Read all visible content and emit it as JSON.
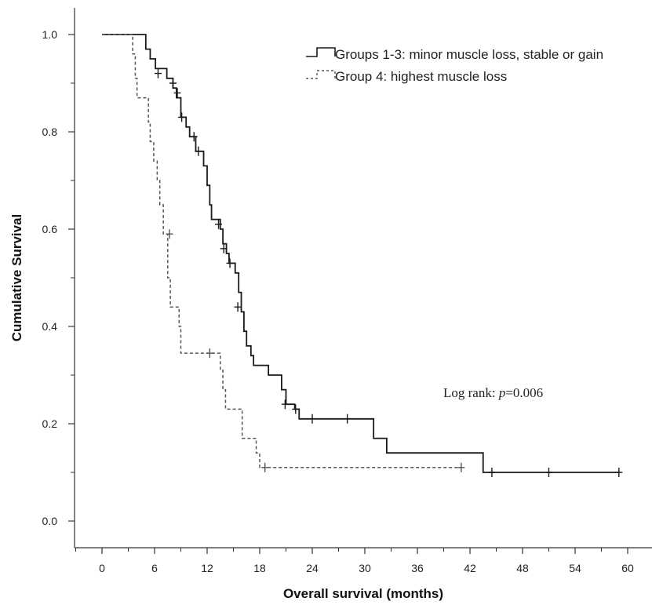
{
  "chart_data": {
    "type": "line",
    "title": "",
    "xlabel": "Overall survival (months)",
    "ylabel": "Cumulative Survival",
    "xlim": [
      0,
      62
    ],
    "ylim": [
      0,
      1.0
    ],
    "x_ticks": [
      0,
      6,
      12,
      18,
      24,
      30,
      36,
      42,
      48,
      54,
      60
    ],
    "x_minor_step": 3,
    "y_ticks": [
      0.0,
      0.2,
      0.4,
      0.6,
      0.8,
      1.0
    ],
    "y_tick_labels": [
      "0.0",
      "0.2",
      "0.4",
      "0.6",
      "0.8",
      "1.0"
    ],
    "y_minor_step": 0.1,
    "grid": false,
    "legend_position": "top-right",
    "series": [
      {
        "name": "Groups 1-3: minor muscle loss, stable or gain",
        "line_style": "solid",
        "color": "#1a1a1a",
        "steps": [
          [
            0,
            1.0
          ],
          [
            2.5,
            1.0
          ],
          [
            5.0,
            0.97
          ],
          [
            5.5,
            0.95
          ],
          [
            6.1,
            0.93
          ],
          [
            7.4,
            0.91
          ],
          [
            8.1,
            0.89
          ],
          [
            8.5,
            0.87
          ],
          [
            9.0,
            0.83
          ],
          [
            9.6,
            0.81
          ],
          [
            10.0,
            0.79
          ],
          [
            10.7,
            0.76
          ],
          [
            11.6,
            0.73
          ],
          [
            12.0,
            0.69
          ],
          [
            12.3,
            0.65
          ],
          [
            12.5,
            0.62
          ],
          [
            13.5,
            0.6
          ],
          [
            13.8,
            0.57
          ],
          [
            14.2,
            0.55
          ],
          [
            14.5,
            0.53
          ],
          [
            15.2,
            0.51
          ],
          [
            15.6,
            0.47
          ],
          [
            15.9,
            0.43
          ],
          [
            16.2,
            0.39
          ],
          [
            16.5,
            0.36
          ],
          [
            17.0,
            0.34
          ],
          [
            17.3,
            0.32
          ],
          [
            19.0,
            0.3
          ],
          [
            20.5,
            0.27
          ],
          [
            21.0,
            0.24
          ],
          [
            22.0,
            0.23
          ],
          [
            22.5,
            0.21
          ],
          [
            31.0,
            0.17
          ],
          [
            32.5,
            0.14
          ],
          [
            43.5,
            0.1
          ],
          [
            59.0,
            0.1
          ]
        ],
        "censor_marks": [
          [
            6.4,
            0.92
          ],
          [
            8.1,
            0.9
          ],
          [
            8.6,
            0.88
          ],
          [
            9.1,
            0.83
          ],
          [
            10.5,
            0.79
          ],
          [
            11.0,
            0.76
          ],
          [
            13.3,
            0.61
          ],
          [
            13.9,
            0.56
          ],
          [
            14.6,
            0.53
          ],
          [
            15.5,
            0.44
          ],
          [
            20.9,
            0.24
          ],
          [
            22.1,
            0.23
          ],
          [
            24.0,
            0.21
          ],
          [
            28.0,
            0.21
          ],
          [
            44.5,
            0.1
          ],
          [
            51.0,
            0.1
          ],
          [
            59.0,
            0.1
          ]
        ]
      },
      {
        "name": "Group 4: highest muscle loss",
        "line_style": "dashed",
        "color": "#555555",
        "steps": [
          [
            0,
            1.0
          ],
          [
            3.3,
            1.0
          ],
          [
            3.5,
            0.96
          ],
          [
            3.8,
            0.91
          ],
          [
            4.0,
            0.87
          ],
          [
            5.3,
            0.82
          ],
          [
            5.5,
            0.78
          ],
          [
            5.9,
            0.74
          ],
          [
            6.3,
            0.7
          ],
          [
            6.6,
            0.65
          ],
          [
            7.0,
            0.59
          ],
          [
            7.5,
            0.5
          ],
          [
            7.8,
            0.44
          ],
          [
            8.8,
            0.4
          ],
          [
            9.0,
            0.345
          ],
          [
            12.5,
            0.345
          ],
          [
            13.5,
            0.31
          ],
          [
            13.8,
            0.27
          ],
          [
            14.1,
            0.23
          ],
          [
            16.0,
            0.17
          ],
          [
            17.6,
            0.14
          ],
          [
            18.0,
            0.11
          ],
          [
            41.0,
            0.11
          ]
        ],
        "censor_marks": [
          [
            7.7,
            0.59
          ],
          [
            12.3,
            0.345
          ],
          [
            18.6,
            0.11
          ],
          [
            41.0,
            0.11
          ]
        ]
      }
    ],
    "annotations": [
      {
        "text_prefix": "Log rank: ",
        "text_italic": "p",
        "text_suffix": "=0.006",
        "x": 39,
        "y": 0.25
      }
    ]
  }
}
